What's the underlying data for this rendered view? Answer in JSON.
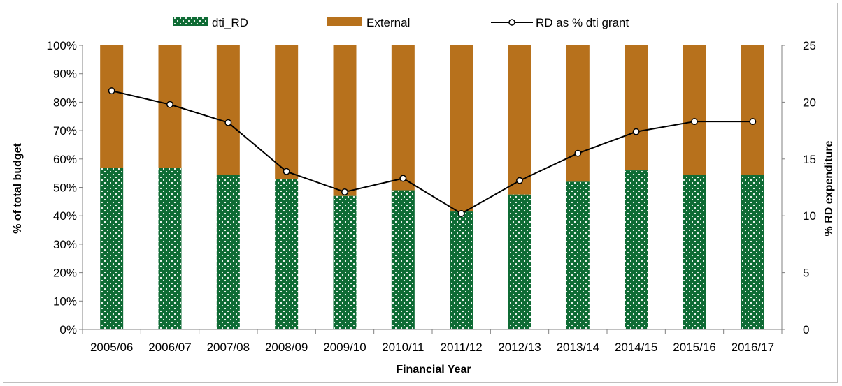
{
  "chart_data": {
    "type": "bar",
    "stacked": true,
    "categories": [
      "2005/06",
      "2006/07",
      "2007/08",
      "2008/09",
      "2009/10",
      "2010/11",
      "2011/12",
      "2012/13",
      "2013/14",
      "2014/15",
      "2015/16",
      "2016/17"
    ],
    "series": [
      {
        "name": "dti_RD",
        "values": [
          57,
          57,
          54.5,
          53,
          47,
          49,
          41.5,
          47.5,
          52,
          56,
          54.5,
          54.5
        ],
        "color": "#0e6b34",
        "pattern": "dotted",
        "axis": "left"
      },
      {
        "name": "External",
        "values": [
          43,
          43,
          45.5,
          47,
          53,
          51,
          58.5,
          52.5,
          48,
          44,
          45.5,
          45.5
        ],
        "color": "#b7711c",
        "axis": "left"
      }
    ],
    "line_series": [
      {
        "name": "RD as % dti grant",
        "values": [
          21,
          19.8,
          18.2,
          13.9,
          12.1,
          13.3,
          10.2,
          13.1,
          15.5,
          17.4,
          18.3,
          18.3
        ],
        "color": "#000000",
        "axis": "right"
      }
    ],
    "xlabel": "Financial Year",
    "ylabel": "% of total budget",
    "y2label": "% RD expenditure",
    "ylim": [
      0,
      100
    ],
    "y2lim": [
      0,
      25
    ],
    "yticks": [
      "0%",
      "10%",
      "20%",
      "30%",
      "40%",
      "50%",
      "60%",
      "70%",
      "80%",
      "90%",
      "100%"
    ],
    "y2ticks": [
      "0",
      "5",
      "10",
      "15",
      "20",
      "25"
    ],
    "legend_position": "top",
    "grid": false
  }
}
